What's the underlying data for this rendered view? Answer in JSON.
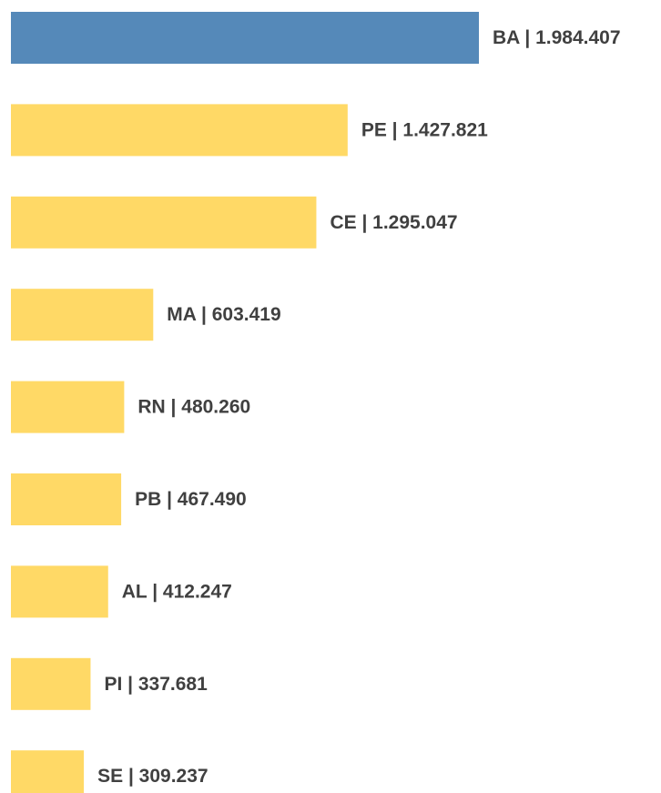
{
  "chart_data": {
    "type": "bar",
    "orientation": "horizontal",
    "values": [
      1984407,
      1427821,
      1295047,
      603419,
      480260,
      467490,
      412247,
      337681,
      309237
    ],
    "value_labels": [
      "BA | 1.984.407",
      "PE | 1.427.821",
      "CE | 1.295.047",
      "MA | 603.419",
      "RN | 480.260",
      "PB | 467.490",
      "AL | 412.247",
      "PI | 337.681",
      "SE | 309.237"
    ],
    "colors": [
      "#5589b9",
      "#ffd966",
      "#ffd966",
      "#ffd966",
      "#ffd966",
      "#ffd966",
      "#ffd966",
      "#ffd966",
      "#ffd966"
    ]
  }
}
